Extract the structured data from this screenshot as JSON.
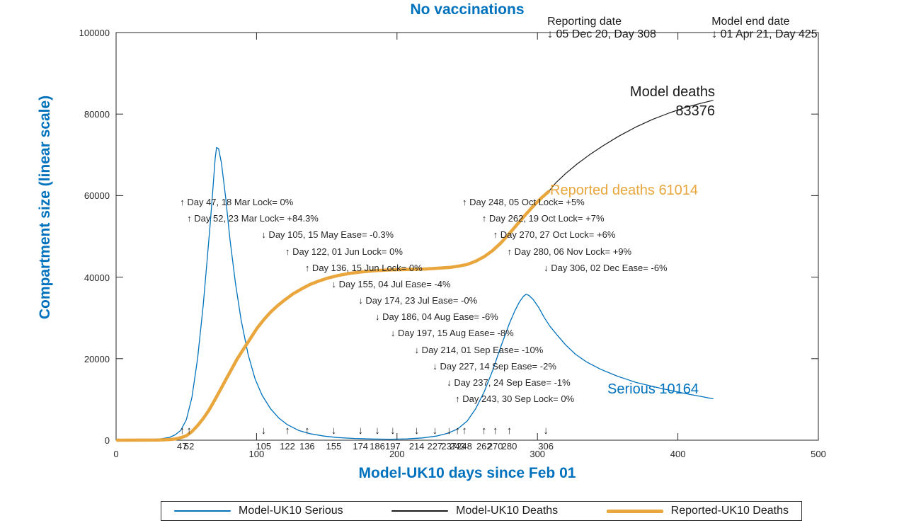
{
  "title": "No vaccinations",
  "colors": {
    "blue": "#0072BD",
    "black": "#1a1a1a",
    "orange": "#E9A63C",
    "axis": "#262626"
  },
  "axes": {
    "x": {
      "label": "Model-UK10 days since Feb 01",
      "min": 0,
      "max": 500,
      "major_ticks": [
        0,
        100,
        200,
        300,
        400,
        500
      ]
    },
    "y": {
      "label": "Compartment size (linear scale)",
      "min": 0,
      "max": 100000,
      "major_ticks": [
        0,
        20000,
        40000,
        60000,
        80000,
        100000
      ]
    },
    "grid": false
  },
  "top_annotations": [
    {
      "title": "Reporting date",
      "line": "↓ 05 Dec 20, Day 308",
      "day": 308
    },
    {
      "title": "Model end date",
      "line": "↓ 01 Apr 21, Day 425",
      "day": 425
    }
  ],
  "curve_labels": {
    "model_deaths_1": "Model deaths",
    "model_deaths_2": "83376",
    "reported_deaths": "Reported deaths 61014",
    "serious": "Serious 10164"
  },
  "events": [
    {
      "day": 47,
      "arrow": "↑",
      "tick": "47",
      "label": "↑ Day 47, 18 Mar Lock= 0%"
    },
    {
      "day": 52,
      "arrow": "↑",
      "tick": "52",
      "label": "↑ Day 52, 23 Mar Lock= +84.3%"
    },
    {
      "day": 105,
      "arrow": "↓",
      "tick": "105",
      "label": "↓ Day 105, 15 May Ease= -0.3%"
    },
    {
      "day": 122,
      "arrow": "↑",
      "tick": "122",
      "label": "↑ Day 122, 01 Jun Lock= 0%"
    },
    {
      "day": 136,
      "arrow": "↑",
      "tick": "136",
      "label": "↑ Day 136, 15 Jun Lock= 0%"
    },
    {
      "day": 155,
      "arrow": "↓",
      "tick": "155",
      "label": "↓ Day 155, 04 Jul Ease= -4%"
    },
    {
      "day": 174,
      "arrow": "↓",
      "tick": "174",
      "label": "↓ Day 174, 23 Jul Ease= -0%"
    },
    {
      "day": 186,
      "arrow": "↓",
      "tick": "186",
      "label": "↓ Day 186, 04 Aug Ease= -6%"
    },
    {
      "day": 197,
      "arrow": "↓",
      "tick": "197",
      "label": "↓ Day 197, 15 Aug Ease= -8%"
    },
    {
      "day": 214,
      "arrow": "↓",
      "tick": "214",
      "label": "↓ Day 214, 01 Sep Ease= -10%"
    },
    {
      "day": 227,
      "arrow": "↓",
      "tick": "227",
      "label": "↓ Day 227, 14 Sep Ease= -2%"
    },
    {
      "day": 237,
      "arrow": "↓",
      "tick": "237",
      "label": "↓ Day 237, 24 Sep Ease= -1%"
    },
    {
      "day": 243,
      "arrow": "↑",
      "tick": "243",
      "label": "↑ Day 243, 30 Sep Lock= 0%"
    },
    {
      "day": 248,
      "arrow": "↑",
      "tick": "248",
      "label": "↑ Day 248, 05 Oct Lock= +5%"
    },
    {
      "day": 262,
      "arrow": "↑",
      "tick": "262",
      "label": "↑ Day 262, 19 Oct Lock= +7%"
    },
    {
      "day": 270,
      "arrow": "↑",
      "tick": "270",
      "label": "↑ Day 270, 27 Oct Lock= +6%"
    },
    {
      "day": 280,
      "arrow": "↑",
      "tick": "280",
      "label": "↑ Day 280, 06 Nov Lock= +9%"
    },
    {
      "day": 306,
      "arrow": "↓",
      "tick": "306",
      "label": "↓ Day 306, 02 Dec Ease= -6%"
    }
  ],
  "chart_data": {
    "type": "line",
    "xlabel": "Model-UK10 days since Feb 01",
    "ylabel": "Compartment size (linear scale)",
    "xlim": [
      0,
      500
    ],
    "ylim": [
      0,
      100000
    ],
    "legend_position": "bottom",
    "key_values": {
      "model_deaths_end": 83376,
      "reported_deaths_end": 61014,
      "serious_end": 10164,
      "reporting_day": 308,
      "model_end_day": 425
    },
    "series": [
      {
        "key": "model-uk10-serious",
        "name": "Model-UK10 Serious",
        "color": "blue",
        "width": 1.3,
        "points": [
          [
            0,
            80
          ],
          [
            15,
            120
          ],
          [
            25,
            200
          ],
          [
            32,
            350
          ],
          [
            38,
            700
          ],
          [
            42,
            1300
          ],
          [
            46,
            2400
          ],
          [
            50,
            5000
          ],
          [
            54,
            10500
          ],
          [
            58,
            20000
          ],
          [
            62,
            33000
          ],
          [
            65,
            45000
          ],
          [
            67,
            53000
          ],
          [
            69,
            62000
          ],
          [
            70.5,
            69000
          ],
          [
            71.5,
            71800
          ],
          [
            73,
            71500
          ],
          [
            75,
            68000
          ],
          [
            78,
            59500
          ],
          [
            81,
            49500
          ],
          [
            85,
            38500
          ],
          [
            89,
            29500
          ],
          [
            94,
            21000
          ],
          [
            99,
            15000
          ],
          [
            104,
            11000
          ],
          [
            110,
            7700
          ],
          [
            116,
            5400
          ],
          [
            122,
            3800
          ],
          [
            130,
            2400
          ],
          [
            138,
            1600
          ],
          [
            148,
            1000
          ],
          [
            158,
            650
          ],
          [
            170,
            420
          ],
          [
            182,
            300
          ],
          [
            195,
            250
          ],
          [
            207,
            320
          ],
          [
            218,
            550
          ],
          [
            228,
            1000
          ],
          [
            236,
            1700
          ],
          [
            243,
            2700
          ],
          [
            250,
            4700
          ],
          [
            256,
            7700
          ],
          [
            262,
            11800
          ],
          [
            268,
            17000
          ],
          [
            274,
            23000
          ],
          [
            280,
            28600
          ],
          [
            284,
            31800
          ],
          [
            287,
            33800
          ],
          [
            290,
            35300
          ],
          [
            292,
            35800
          ],
          [
            294,
            35500
          ],
          [
            297,
            34500
          ],
          [
            301,
            32500
          ],
          [
            305,
            30000
          ],
          [
            309,
            27900
          ],
          [
            314,
            25800
          ],
          [
            320,
            23400
          ],
          [
            327,
            21100
          ],
          [
            335,
            19200
          ],
          [
            345,
            17400
          ],
          [
            357,
            15700
          ],
          [
            370,
            14200
          ],
          [
            383,
            13100
          ],
          [
            396,
            12100
          ],
          [
            409,
            11200
          ],
          [
            417,
            10700
          ],
          [
            425,
            10164
          ]
        ]
      },
      {
        "key": "model-uk10-deaths",
        "name": "Model-UK10 Deaths",
        "color": "black",
        "width": 1.2,
        "points": [
          [
            0,
            0
          ],
          [
            30,
            50
          ],
          [
            38,
            150
          ],
          [
            42,
            300
          ],
          [
            46,
            600
          ],
          [
            50,
            1100
          ],
          [
            54,
            2100
          ],
          [
            58,
            3600
          ],
          [
            62,
            5300
          ],
          [
            66,
            7300
          ],
          [
            70,
            9700
          ],
          [
            74,
            12200
          ],
          [
            78,
            14800
          ],
          [
            82,
            17300
          ],
          [
            86,
            19800
          ],
          [
            90,
            22000
          ],
          [
            95,
            24600
          ],
          [
            100,
            27300
          ],
          [
            105,
            29500
          ],
          [
            110,
            31400
          ],
          [
            115,
            33000
          ],
          [
            120,
            34400
          ],
          [
            126,
            35900
          ],
          [
            132,
            37100
          ],
          [
            138,
            38200
          ],
          [
            144,
            39000
          ],
          [
            151,
            39800
          ],
          [
            158,
            40400
          ],
          [
            166,
            40900
          ],
          [
            175,
            41300
          ],
          [
            185,
            41600
          ],
          [
            196,
            41800
          ],
          [
            208,
            41900
          ],
          [
            220,
            42000
          ],
          [
            230,
            42200
          ],
          [
            238,
            42400
          ],
          [
            244,
            42700
          ],
          [
            250,
            43100
          ],
          [
            256,
            43900
          ],
          [
            262,
            45000
          ],
          [
            268,
            46500
          ],
          [
            274,
            48400
          ],
          [
            280,
            50700
          ],
          [
            286,
            53100
          ],
          [
            292,
            55500
          ],
          [
            298,
            57800
          ],
          [
            303,
            59500
          ],
          [
            308,
            61014
          ],
          [
            313,
            63100
          ],
          [
            320,
            65400
          ],
          [
            328,
            67700
          ],
          [
            337,
            70000
          ],
          [
            347,
            72300
          ],
          [
            358,
            74600
          ],
          [
            370,
            76800
          ],
          [
            382,
            78700
          ],
          [
            394,
            80300
          ],
          [
            406,
            81700
          ],
          [
            416,
            82600
          ],
          [
            425,
            83376
          ]
        ]
      },
      {
        "key": "reported-uk10-deaths",
        "name": "Reported-UK10 Deaths",
        "color": "orange",
        "width": 4.5,
        "points": [
          [
            1,
            0
          ],
          [
            30,
            50
          ],
          [
            38,
            150
          ],
          [
            42,
            300
          ],
          [
            46,
            600
          ],
          [
            50,
            1100
          ],
          [
            54,
            2100
          ],
          [
            58,
            3600
          ],
          [
            62,
            5300
          ],
          [
            66,
            7300
          ],
          [
            70,
            9700
          ],
          [
            74,
            12200
          ],
          [
            78,
            14800
          ],
          [
            82,
            17300
          ],
          [
            86,
            19800
          ],
          [
            90,
            22000
          ],
          [
            95,
            24600
          ],
          [
            100,
            27300
          ],
          [
            105,
            29500
          ],
          [
            110,
            31400
          ],
          [
            115,
            33000
          ],
          [
            120,
            34400
          ],
          [
            126,
            35900
          ],
          [
            132,
            37100
          ],
          [
            138,
            38200
          ],
          [
            144,
            39000
          ],
          [
            151,
            39800
          ],
          [
            158,
            40400
          ],
          [
            166,
            40900
          ],
          [
            175,
            41300
          ],
          [
            185,
            41600
          ],
          [
            196,
            41800
          ],
          [
            208,
            41900
          ],
          [
            220,
            42000
          ],
          [
            230,
            42200
          ],
          [
            238,
            42400
          ],
          [
            244,
            42700
          ],
          [
            250,
            43100
          ],
          [
            256,
            43900
          ],
          [
            262,
            45000
          ],
          [
            268,
            46500
          ],
          [
            274,
            48400
          ],
          [
            280,
            50700
          ],
          [
            286,
            53100
          ],
          [
            292,
            55500
          ],
          [
            298,
            57800
          ],
          [
            303,
            59500
          ],
          [
            308,
            61014
          ]
        ]
      }
    ]
  },
  "legend": {
    "items": [
      {
        "label": "Model-UK10 Serious",
        "color": "blue",
        "thickness": 2
      },
      {
        "label": "Model-UK10 Deaths",
        "color": "black",
        "thickness": 2
      },
      {
        "label": "Reported-UK10 Deaths",
        "color": "orange",
        "thickness": 5
      }
    ]
  }
}
